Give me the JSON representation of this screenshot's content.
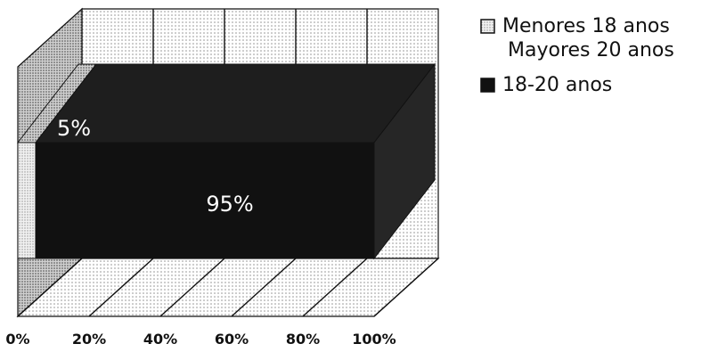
{
  "chart_data": {
    "type": "bar",
    "orientation": "horizontal",
    "stacked_percent": true,
    "three_d": true,
    "categories": [
      ""
    ],
    "series": [
      {
        "name": "Menores 18 anos\nMayores 20 anos",
        "legend_lines": [
          "Menores 18 anos",
          "Mayores 20 anos"
        ],
        "values": [
          5
        ],
        "label": "5%",
        "color": "#c8c8c8"
      },
      {
        "name": "18-20 anos",
        "legend_lines": [
          "18-20 anos"
        ],
        "values": [
          95
        ],
        "label": "95%",
        "color": "#111111"
      }
    ],
    "x_ticks": [
      "0%",
      "20%",
      "40%",
      "60%",
      "80%",
      "100%"
    ],
    "xlim": [
      0,
      100
    ],
    "grid": true,
    "legend_position": "top-right",
    "title": "",
    "xlabel": "",
    "ylabel": ""
  }
}
